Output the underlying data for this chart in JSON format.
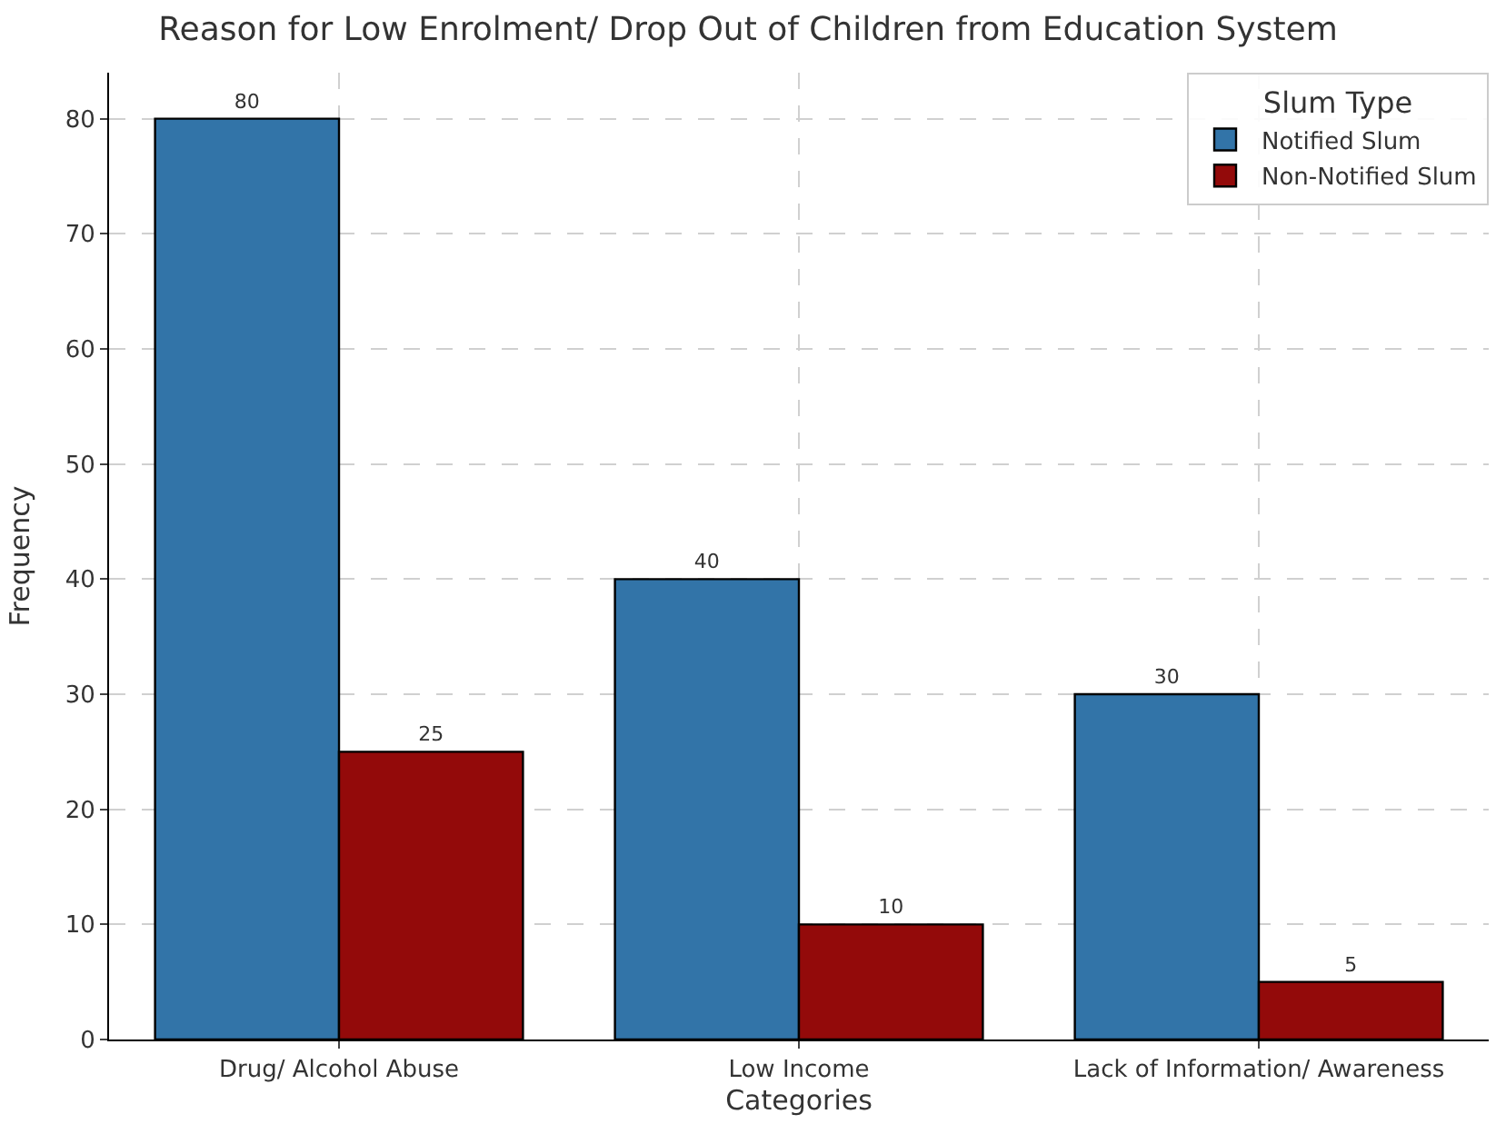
{
  "chart_data": {
    "type": "bar",
    "title": "Reason for Low Enrolment/ Drop Out of Children from Education System",
    "xlabel": "Categories",
    "ylabel": "Frequency",
    "legend_title": "Slum Type",
    "categories": [
      "Drug/ Alcohol Abuse",
      "Low Income",
      "Lack of Information/ Awareness"
    ],
    "series": [
      {
        "name": "Notified Slum",
        "color": "#3274a8",
        "values": [
          80,
          40,
          30
        ]
      },
      {
        "name": "Non-Notified Slum",
        "color": "#930a0a",
        "values": [
          25,
          10,
          5
        ]
      }
    ],
    "ylim": [
      0,
      84
    ],
    "yticks": [
      0,
      10,
      20,
      30,
      40,
      50,
      60,
      70,
      80
    ],
    "grid": true,
    "legend": "top right",
    "data_labels": true
  }
}
